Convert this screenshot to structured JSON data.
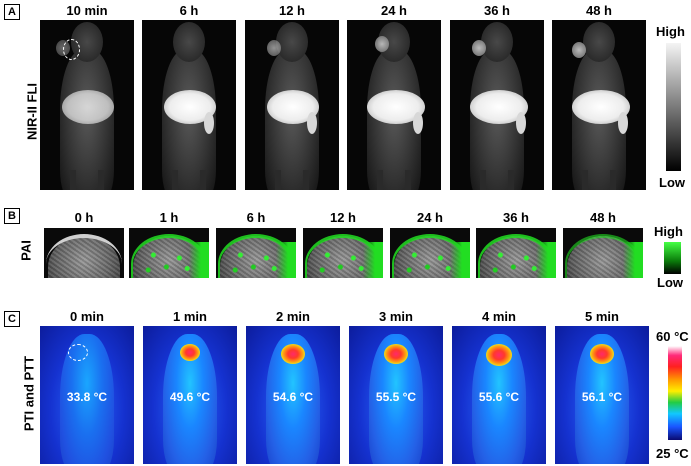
{
  "panel_a": {
    "letter": "A",
    "side_label": "NIR-II FLI",
    "timepoints": [
      "10 min",
      "6 h",
      "12 h",
      "24 h",
      "36 h",
      "48 h"
    ],
    "scale_high": "High",
    "scale_low": "Low"
  },
  "panel_b": {
    "letter": "B",
    "side_label": "PAI",
    "timepoints": [
      "0 h",
      "1 h",
      "6 h",
      "12 h",
      "24 h",
      "36 h",
      "48 h"
    ],
    "scale_high": "High",
    "scale_low": "Low"
  },
  "panel_c": {
    "letter": "C",
    "side_label": "PTI and PTT",
    "timepoints": [
      "0 min",
      "1 min",
      "2 min",
      "3 min",
      "4 min",
      "5 min"
    ],
    "temperatures": [
      "33.8 °C",
      "49.6 °C",
      "54.6 °C",
      "55.5 °C",
      "55.6 °C",
      "56.1 °C"
    ],
    "scale_high": "60 °C",
    "scale_low": "25 °C"
  },
  "colors": {
    "nir_scale": [
      "#f4f4f4",
      "#000000"
    ],
    "pai_signal": "#22dd22",
    "thermal_hot": "#ff2a6a",
    "thermal_cold": "#0c1c9c"
  }
}
